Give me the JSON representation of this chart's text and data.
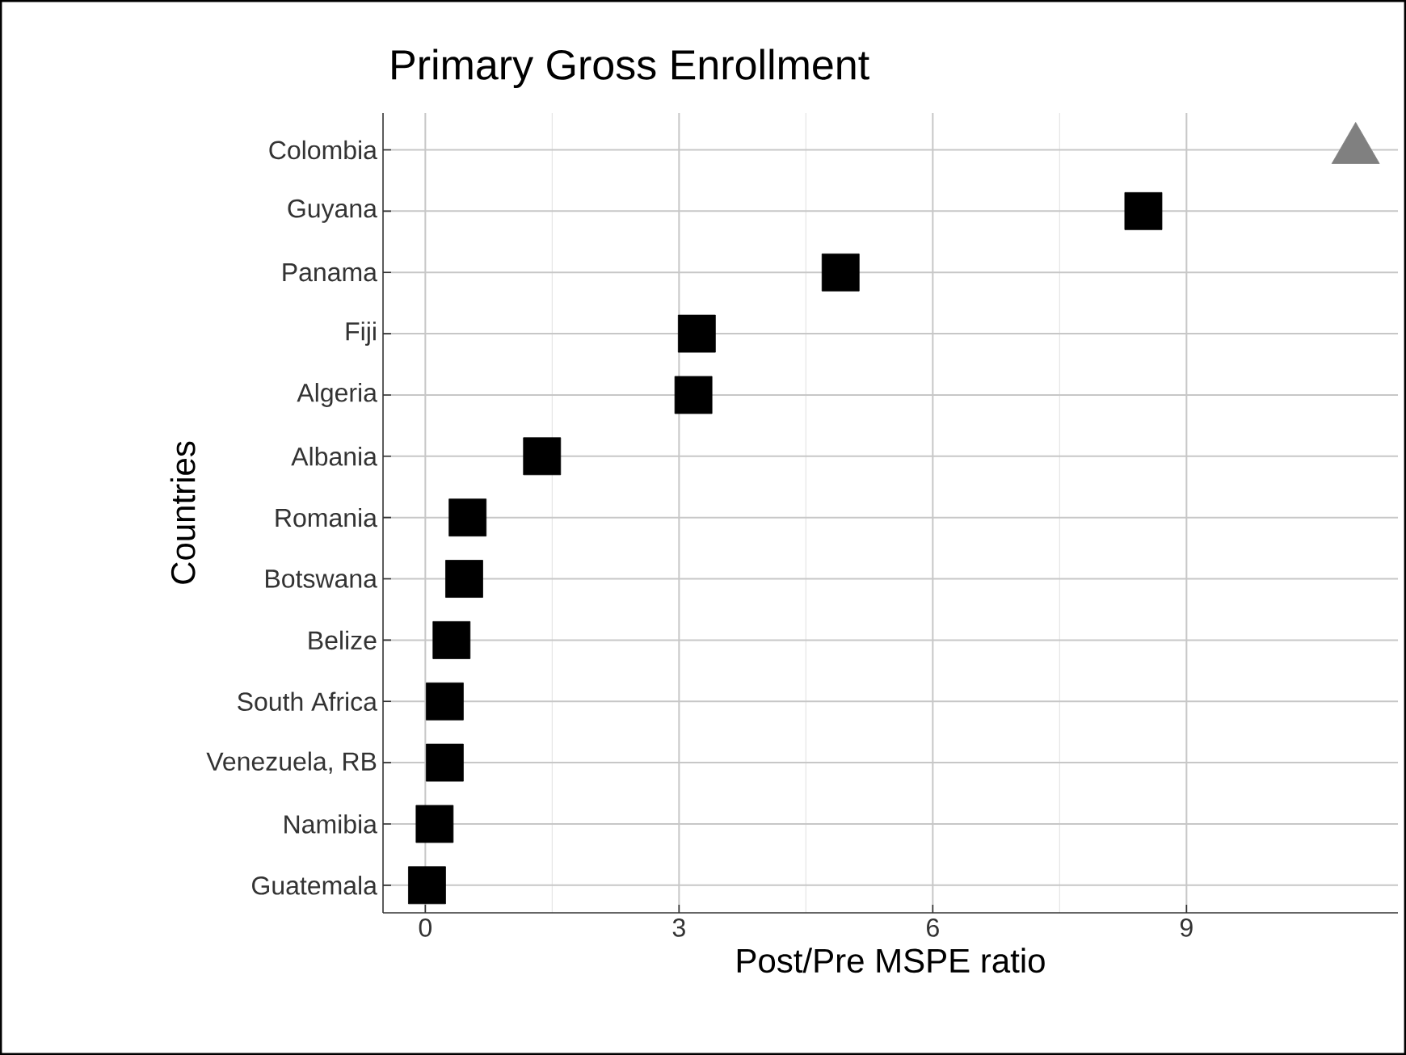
{
  "chart_data": {
    "type": "scatter",
    "title": "Primary Gross Enrollment",
    "xlabel": "Post/Pre MSPE ratio",
    "ylabel": "Countries",
    "orientation": "horizontal",
    "categories": [
      "Colombia",
      "Guyana",
      "Panama",
      "Fiji",
      "Algeria",
      "Albania",
      "Romania",
      "Botswana",
      "Belize",
      "South Africa",
      "Venezuela, RB",
      "Namibia",
      "Guatemala"
    ],
    "series": [
      {
        "color": "#808080",
        "marker": "triangle",
        "values": [
          11.0,
          null,
          null,
          null,
          null,
          null,
          null,
          null,
          null,
          null,
          null,
          null,
          null
        ]
      },
      {
        "color": "#000000",
        "marker": "square",
        "values": [
          null,
          8.49,
          4.91,
          3.21,
          3.17,
          1.38,
          0.5,
          0.46,
          0.31,
          0.23,
          0.23,
          0.11,
          0.02
        ]
      }
    ],
    "xlim": [
      -0.5,
      11.5
    ],
    "xticks": [
      0,
      3,
      6,
      9
    ],
    "grid": true
  }
}
